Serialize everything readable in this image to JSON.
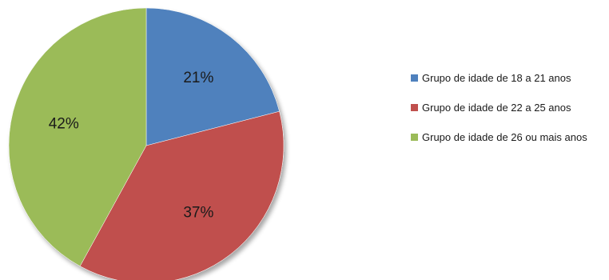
{
  "chart_data": {
    "type": "pie",
    "categories": [
      "Grupo de idade de 18 a 21 anos",
      "Grupo de idade de 22 a 25 anos",
      "Grupo de idade de 26 ou mais anos"
    ],
    "values": [
      21,
      37,
      42
    ],
    "value_labels": [
      "21%",
      "37%",
      "42%"
    ],
    "colors": [
      "#4f81bd",
      "#c0504d",
      "#9bbb59"
    ],
    "legend_position": "right",
    "start_angle": "top, clockwise",
    "title": ""
  },
  "legend": {
    "items": [
      {
        "label": "Grupo de idade de 18 a 21 anos",
        "color": "#4f81bd"
      },
      {
        "label": "Grupo de idade de 22 a 25 anos",
        "color": "#c0504d"
      },
      {
        "label": "Grupo de idade de 26 ou mais anos",
        "color": "#9bbb59"
      }
    ]
  }
}
